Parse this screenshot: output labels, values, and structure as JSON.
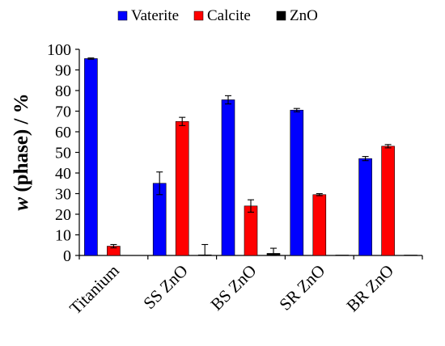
{
  "chart_data": {
    "type": "bar",
    "title": "",
    "xlabel": "",
    "ylabel": "w (phase) / %",
    "ylabel_parts": {
      "italic": "w",
      "rest": " (phase) / %"
    },
    "ylim": [
      0,
      100
    ],
    "yticks": [
      0,
      10,
      20,
      30,
      40,
      50,
      60,
      70,
      80,
      90,
      100
    ],
    "grid": false,
    "legend_position": "top",
    "categories": [
      "Titanium",
      "SS ZnO",
      "BS ZnO",
      "SR ZnO",
      "BR ZnO"
    ],
    "series": [
      {
        "name": "Vaterite",
        "color": "#0000ff",
        "values": [
          95.5,
          35,
          75.5,
          70.5,
          47
        ],
        "errors": [
          0.3,
          5.5,
          2,
          0.8,
          1
        ]
      },
      {
        "name": "Calcite",
        "color": "#ff0000",
        "values": [
          4.5,
          65,
          24,
          29.5,
          53
        ],
        "errors": [
          0.8,
          2,
          3,
          0.5,
          0.8
        ]
      },
      {
        "name": "ZnO",
        "color": "#000000",
        "values": [
          0,
          0.3,
          1,
          0.2,
          0.2
        ],
        "errors": [
          0,
          5,
          2.5,
          0,
          0
        ]
      }
    ]
  }
}
